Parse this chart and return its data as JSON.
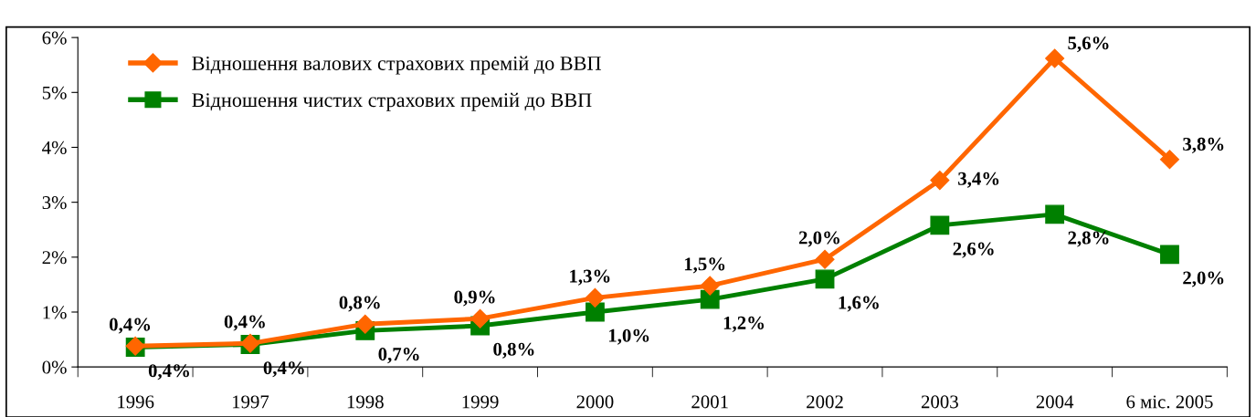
{
  "chart_data": {
    "type": "line",
    "categories": [
      "1996",
      "1997",
      "1998",
      "1999",
      "2000",
      "2001",
      "2002",
      "2003",
      "2004",
      "6 міс. 2005"
    ],
    "series": [
      {
        "name": "Відношення валових страхових премій до ВВП",
        "color": "#ff6600",
        "marker": "diamond",
        "values": [
          0.38,
          0.43,
          0.78,
          0.88,
          1.26,
          1.48,
          1.96,
          3.4,
          5.62,
          3.78
        ],
        "value_labels": [
          "0,4%",
          "0,4%",
          "0,8%",
          "0,9%",
          "1,3%",
          "1,5%",
          "2,0%",
          "3,4%",
          "5,6%",
          "3,8%"
        ]
      },
      {
        "name": "Відношення чистих страхових премій до ВВП",
        "color": "#008000",
        "marker": "square",
        "values": [
          0.36,
          0.41,
          0.66,
          0.75,
          1.0,
          1.23,
          1.6,
          2.58,
          2.78,
          2.05
        ],
        "value_labels": [
          "0,4%",
          "0,4%",
          "0,7%",
          "0,8%",
          "1,0%",
          "1,2%",
          "1,6%",
          "2,6%",
          "2,8%",
          "2,0%"
        ]
      }
    ],
    "ylim": [
      0,
      6
    ],
    "yticks": [
      {
        "value": 0,
        "label": "0%"
      },
      {
        "value": 1,
        "label": "1%"
      },
      {
        "value": 2,
        "label": "2%"
      },
      {
        "value": 3,
        "label": "3%"
      },
      {
        "value": 4,
        "label": "4%"
      },
      {
        "value": 5,
        "label": "5%"
      },
      {
        "value": 6,
        "label": "6%"
      }
    ],
    "legend": "top left",
    "grid": false,
    "line_style": "solid"
  }
}
